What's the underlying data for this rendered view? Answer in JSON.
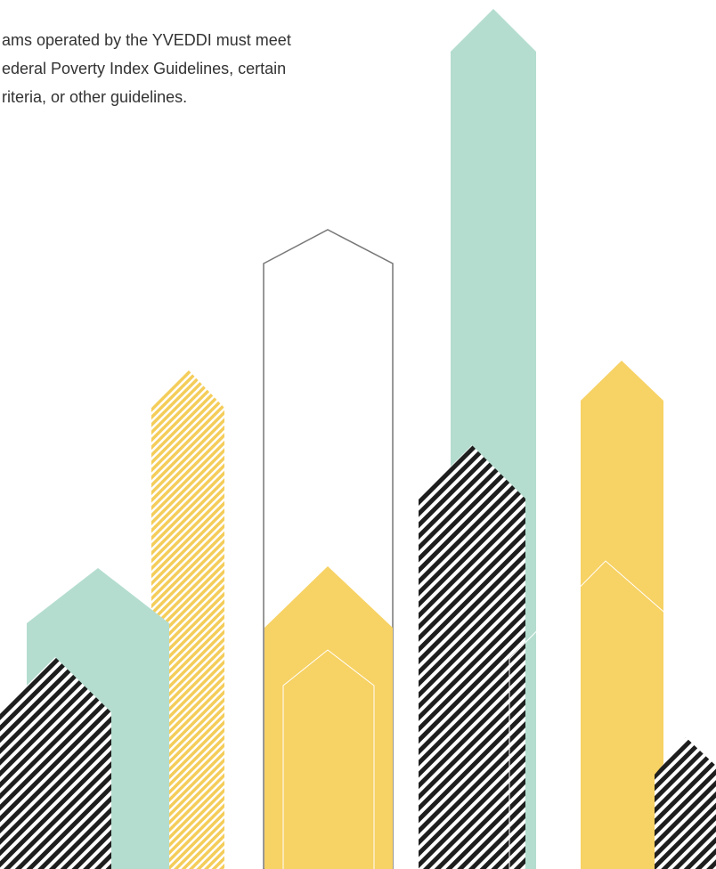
{
  "text_lines": [
    "ams operated by the YVEDDI must meet",
    "ederal Poverty Index Guidelines, certain",
    "riteria, or other guidelines."
  ]
}
